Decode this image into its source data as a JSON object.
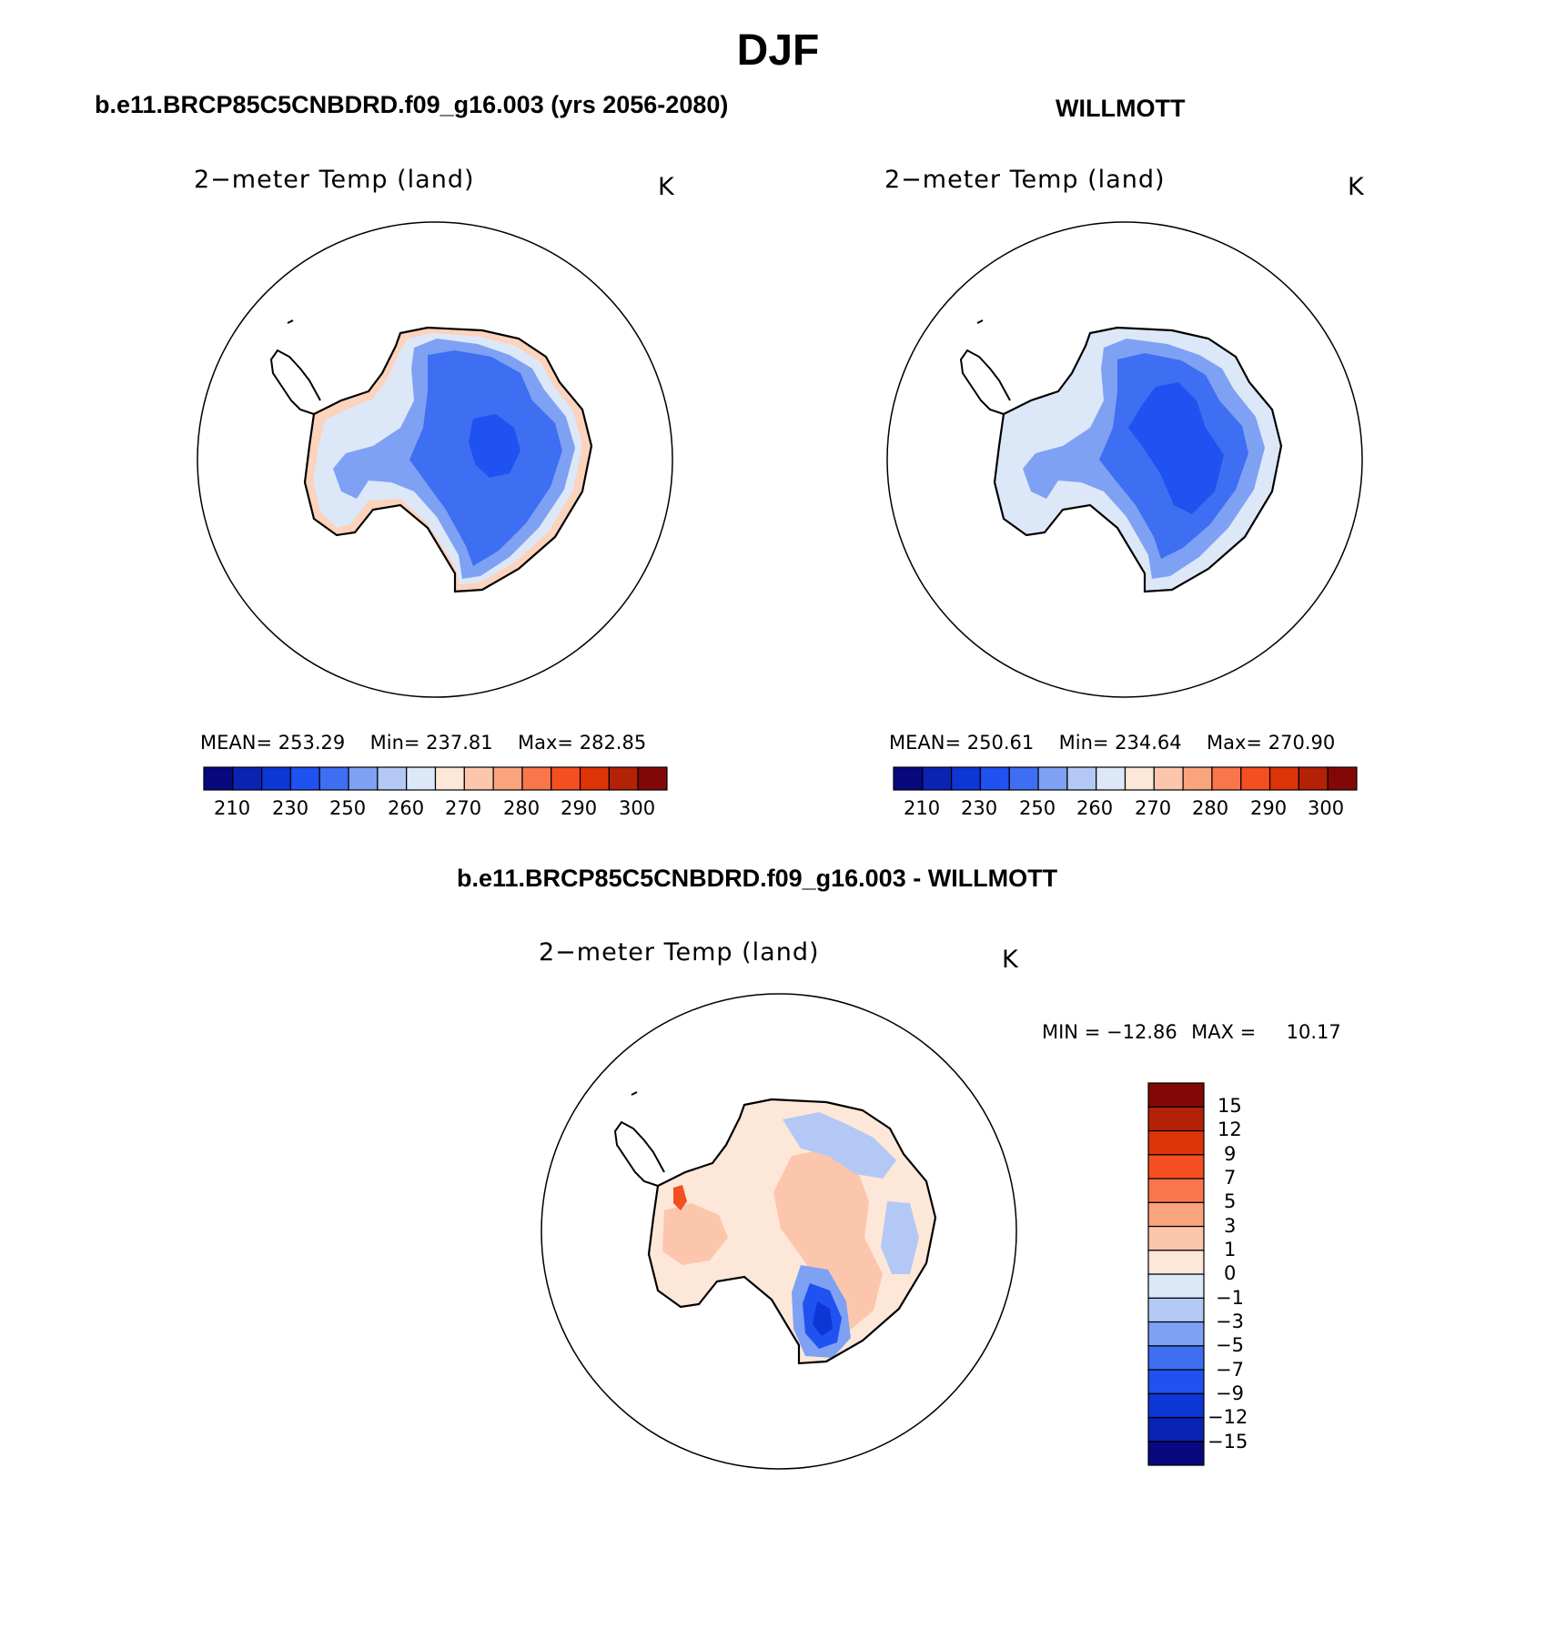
{
  "page": {
    "season_title": "DJF"
  },
  "colors": {
    "abs_scale": [
      "#08097f",
      "#0b23b3",
      "#0d36d6",
      "#1f52f0",
      "#3e6ef2",
      "#7fa1f4",
      "#b4c8f6",
      "#dce8f8",
      "#fde7d8",
      "#fcc6ad",
      "#faa47e",
      "#f9764a",
      "#f34f21",
      "#de3408",
      "#b32107",
      "#820807"
    ],
    "diff_scale": [
      "#08097f",
      "#0b23b3",
      "#0d36d6",
      "#1f52f0",
      "#3e6ef2",
      "#7fa1f4",
      "#b4c8f6",
      "#dce8f8",
      "#fde7d8",
      "#fcc6ad",
      "#faa47e",
      "#f9764a",
      "#f34f21",
      "#de3408",
      "#b32107",
      "#820807"
    ]
  },
  "panels": [
    {
      "case_title": "b.e11.BRCP85C5CNBDRD.f09_g16.003 (yrs 2056-2080)",
      "variable": "2−meter Temp (land)",
      "units": "K",
      "mean_label": "MEAN=",
      "mean": "253.29",
      "min_label": "Min=",
      "min": "237.81",
      "max_label": "Max=",
      "max": "282.85",
      "colorbar_ticks": [
        "210",
        "230",
        "250",
        "260",
        "270",
        "280",
        "290",
        "300"
      ]
    },
    {
      "case_title": "WILLMOTT",
      "variable": "2−meter Temp (land)",
      "units": "K",
      "mean_label": "MEAN=",
      "mean": "250.61",
      "min_label": "Min=",
      "min": "234.64",
      "max_label": "Max=",
      "max": "270.90",
      "colorbar_ticks": [
        "210",
        "230",
        "250",
        "260",
        "270",
        "280",
        "290",
        "300"
      ]
    }
  ],
  "difference": {
    "case_title": "b.e11.BRCP85C5CNBDRD.f09_g16.003 - WILLMOTT",
    "variable": "2−meter Temp (land)",
    "units": "K",
    "min_label": "MIN =",
    "min": "−12.86",
    "max_label": "MAX =",
    "max": "10.17",
    "colorbar_ticks": [
      "15",
      "12",
      "9",
      "7",
      "5",
      "3",
      "1",
      "0",
      "−1",
      "−3",
      "−5",
      "−7",
      "−9",
      "−12",
      "−15"
    ]
  }
}
